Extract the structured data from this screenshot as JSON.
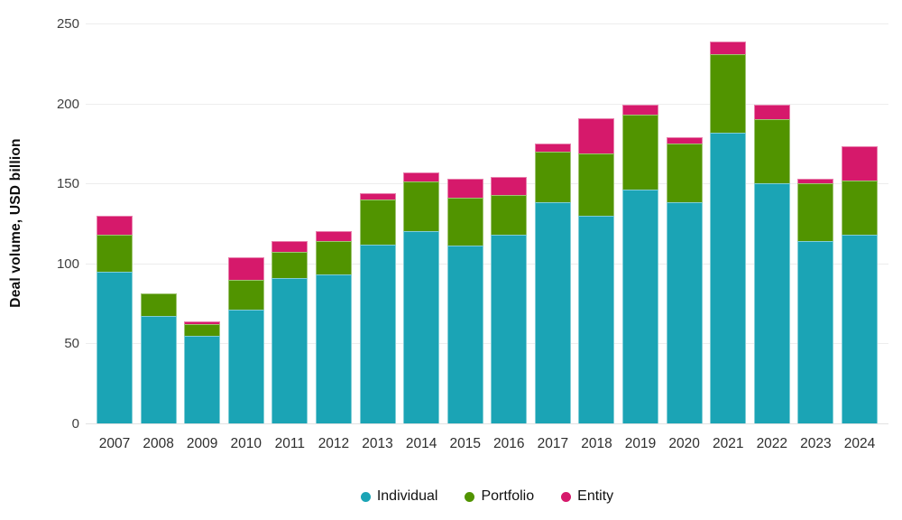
{
  "chart_data": {
    "type": "bar",
    "stacked": true,
    "title": "",
    "xlabel": "",
    "ylabel": "Deal volume, USD billion",
    "ylim": [
      0,
      250
    ],
    "yticks": [
      0,
      50,
      100,
      150,
      200,
      250
    ],
    "grid": true,
    "legend_position": "bottom",
    "categories": [
      "2007",
      "2008",
      "2009",
      "2010",
      "2011",
      "2012",
      "2013",
      "2014",
      "2015",
      "2016",
      "2017",
      "2018",
      "2019",
      "2020",
      "2021",
      "2022",
      "2023",
      "2024"
    ],
    "series": [
      {
        "name": "Individual",
        "color": "#1BA4B5",
        "values": [
          95,
          67,
          55,
          71,
          91,
          93,
          112,
          120,
          111,
          118,
          138,
          130,
          146,
          138,
          182,
          150,
          114,
          118
        ]
      },
      {
        "name": "Portfolio",
        "color": "#519400",
        "values": [
          23,
          14,
          7,
          19,
          16,
          21,
          28,
          31,
          30,
          25,
          32,
          39,
          47,
          37,
          49,
          40,
          36,
          34
        ]
      },
      {
        "name": "Entity",
        "color": "#D6196B",
        "values": [
          12,
          0,
          2,
          14,
          7,
          6,
          4,
          6,
          12,
          11,
          5,
          22,
          6,
          4,
          8,
          9,
          3,
          21
        ]
      }
    ],
    "totals": [
      130,
      81,
      64,
      104,
      114,
      120,
      144,
      157,
      153,
      154,
      175,
      191,
      199,
      179,
      239,
      199,
      153,
      173
    ]
  },
  "colors": {
    "individual": "#1BA4B5",
    "portfolio": "#519400",
    "entity": "#D6196B",
    "gridline": "#ededed",
    "axis_text": "#404040",
    "label_text": "#2e2e2e"
  }
}
